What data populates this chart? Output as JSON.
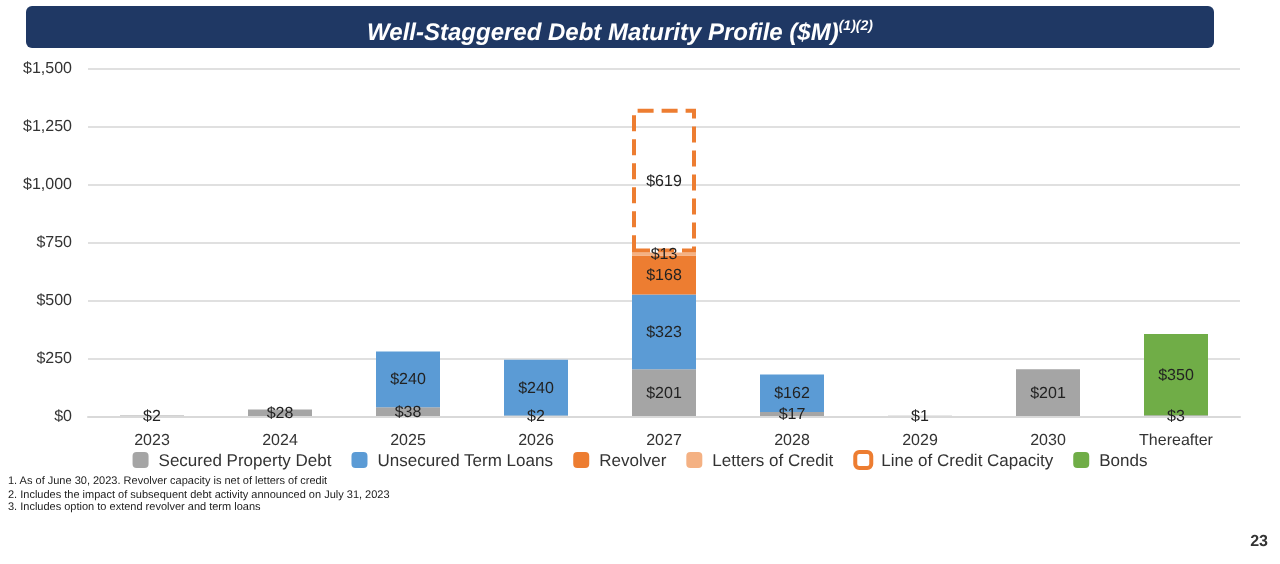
{
  "chart_data": {
    "type": "bar",
    "title": "Well-Staggered Debt Maturity Profile ($M)$^{(1)(2)}$",
    "categories": [
      "2023",
      "2024",
      "2025",
      "2026",
      "2027",
      "2028",
      "2029",
      "2030",
      "Thereafter"
    ],
    "stacked": true,
    "grid": "y",
    "legend": "bottom",
    "ylim": [
      0,
      1500
    ],
    "yticks": [
      {
        "value": 0,
        "label": "$0"
      },
      {
        "value": 250,
        "label": "$250"
      },
      {
        "value": 500,
        "label": "$500"
      },
      {
        "value": 750,
        "label": "$750"
      },
      {
        "value": 1000,
        "label": "$1,000"
      },
      {
        "value": 1250,
        "label": "$1,250"
      },
      {
        "value": 1500,
        "label": "$1,500"
      }
    ],
    "series": [
      {
        "name": "Secured Property Debt",
        "color": "#a5a5a5",
        "values": [
          2,
          28,
          38,
          2,
          201,
          17,
          1,
          201,
          3
        ],
        "value_labels": [
          "$2",
          "$28",
          "$38",
          "$2",
          "$201",
          "$17",
          "$1",
          "$201",
          "$3"
        ]
      },
      {
        "name": "Unsecured Term Loans",
        "color": "#5b9bd5",
        "values": [
          null,
          null,
          240,
          240,
          323,
          162,
          null,
          null,
          null
        ],
        "value_labels": [
          null,
          null,
          "$240",
          "$240",
          "$323",
          "$162",
          null,
          null,
          null
        ]
      },
      {
        "name": "Revolver",
        "color": "#ed7d31",
        "values": [
          null,
          null,
          null,
          null,
          168,
          null,
          null,
          null,
          null
        ],
        "value_labels": [
          null,
          null,
          null,
          null,
          "$168",
          null,
          null,
          null,
          null
        ]
      },
      {
        "name": "Letters of Credit",
        "color": "#f4b183",
        "values": [
          null,
          null,
          null,
          null,
          13,
          null,
          null,
          null,
          null
        ],
        "value_labels": [
          null,
          null,
          null,
          null,
          "$13",
          null,
          null,
          null,
          null
        ]
      },
      {
        "name": "Line of Credit Capacity",
        "color": "#ed7d31",
        "line_style": "dashed",
        "values": [
          null,
          null,
          null,
          null,
          619,
          null,
          null,
          null,
          null
        ],
        "value_labels": [
          null,
          null,
          null,
          null,
          "$619",
          null,
          null,
          null,
          null
        ]
      },
      {
        "name": "Bonds",
        "color": "#70ad47",
        "values": [
          null,
          null,
          null,
          null,
          null,
          null,
          null,
          null,
          350
        ],
        "value_labels": [
          null,
          null,
          null,
          null,
          null,
          null,
          null,
          null,
          "$350"
        ]
      }
    ],
    "annotations": [
      "1.  As of June 30, 2023. Revolver capacity is net of letters of credit",
      "2.  Includes the impact of subsequent debt activity announced on July 31, 2023",
      "3.  Includes option to extend revolver and term loans",
      "23"
    ]
  }
}
